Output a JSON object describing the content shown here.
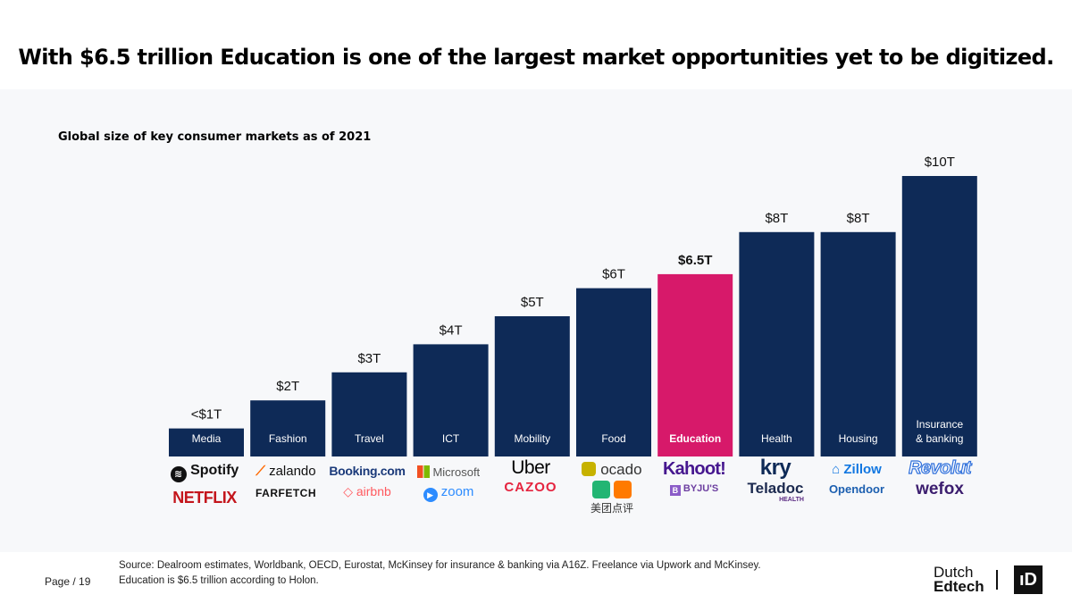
{
  "headline": "With $6.5 trillion Education is one of the largest market opportunities yet to be digitized.",
  "colors": {
    "bar": "#0e2a57",
    "highlight": "#d7196a",
    "panel": "#f7f8fa"
  },
  "chart_data": {
    "type": "bar",
    "title": "Global size of key consumer markets as of 2021",
    "unit": "trillion USD",
    "ylim": [
      0,
      10
    ],
    "categories": [
      "Media",
      "Fashion",
      "Travel",
      "ICT",
      "Mobility",
      "Food",
      "Education",
      "Health",
      "Housing",
      "Insurance & banking"
    ],
    "values": [
      1,
      2,
      3,
      4,
      5,
      6,
      6.5,
      8,
      8,
      10
    ],
    "value_labels": [
      "<$1T",
      "$2T",
      "$3T",
      "$4T",
      "$5T",
      "$6T",
      "$6.5T",
      "$8T",
      "$8T",
      "$10T"
    ],
    "highlight_category": "Education"
  },
  "logos": [
    [
      "Spotify",
      "NETFLIX"
    ],
    [
      "zalando",
      "FARFETCH"
    ],
    [
      "Booking.com",
      "airbnb"
    ],
    [
      "Microsoft",
      "zoom"
    ],
    [
      "Uber",
      "CAZOO"
    ],
    [
      "ocado",
      "美团点评"
    ],
    [
      "Kahoot!",
      "BYJU'S"
    ],
    [
      "kry",
      "Teladoc",
      "HEALTH"
    ],
    [
      "Zillow",
      "Opendoor"
    ],
    [
      "Revolut",
      "wefox"
    ]
  ],
  "footer": {
    "page": "Page / 19",
    "source_line1": "Source:  Dealroom estimates, Worldbank, OECD, Eurostat, McKinsey for insurance & banking via A16Z. Freelance via Upwork and McKinsey.",
    "source_line2": "Education is $6.5 trillion according to Holon.",
    "brand_line1": "Dutch",
    "brand_line2": "Edtech",
    "brand_mark": "ıD"
  }
}
